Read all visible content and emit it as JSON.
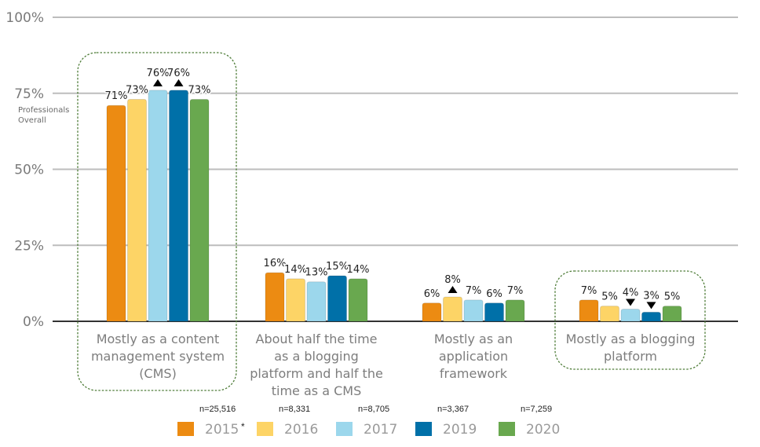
{
  "chart_data": {
    "type": "bar",
    "title": "",
    "xlabel": "",
    "ylabel": "",
    "ylim": [
      0,
      100
    ],
    "yticks": [
      {
        "value": 0,
        "label": "0%"
      },
      {
        "value": 25,
        "label": "25%"
      },
      {
        "value": 50,
        "label": "50%"
      },
      {
        "value": 75,
        "label": "75%"
      },
      {
        "value": 100,
        "label": "100%"
      }
    ],
    "grid": true,
    "y_annotation": [
      "Professionals",
      "Overall"
    ],
    "categories": [
      [
        "Mostly as a content",
        "management system",
        "(CMS)"
      ],
      [
        "About half the time",
        "as a blogging",
        "platform and half the",
        "time as a CMS"
      ],
      [
        "Mostly as an",
        "application",
        "framework"
      ],
      [
        "Mostly as a blogging",
        "platform"
      ]
    ],
    "highlighted_categories": [
      0,
      3
    ],
    "series": [
      {
        "name": "2015",
        "color": "#ec8b12",
        "n_label": "n=25,516",
        "footnote": "*",
        "values": [
          71,
          16,
          6,
          7
        ],
        "labels": [
          "71%",
          "16%",
          "6%",
          "7%"
        ],
        "markers": [
          "",
          "",
          "",
          ""
        ]
      },
      {
        "name": "2016",
        "color": "#fdd466",
        "n_label": "n=8,331",
        "values": [
          73,
          14,
          8,
          5
        ],
        "labels": [
          "73%",
          "14%",
          "8%",
          "5%"
        ],
        "markers": [
          "",
          "",
          "up",
          ""
        ]
      },
      {
        "name": "2017",
        "color": "#9cd7ec",
        "n_label": "n=8,705",
        "values": [
          76,
          13,
          7,
          4
        ],
        "labels": [
          "76%",
          "13%",
          "7%",
          "4%"
        ],
        "markers": [
          "up",
          "",
          "",
          "down"
        ]
      },
      {
        "name": "2019",
        "color": "#0070a8",
        "n_label": "n=3,367",
        "values": [
          76,
          15,
          6,
          3
        ],
        "labels": [
          "76%",
          "15%",
          "6%",
          "3%"
        ],
        "markers": [
          "up",
          "",
          "",
          "down"
        ]
      },
      {
        "name": "2020",
        "color": "#69a84f",
        "n_label": "n=7,259",
        "values": [
          73,
          14,
          7,
          5
        ],
        "labels": [
          "73%",
          "14%",
          "7%",
          "5%"
        ],
        "markers": [
          "",
          "",
          "",
          ""
        ]
      }
    ],
    "legend": {
      "position": "bottom"
    }
  }
}
